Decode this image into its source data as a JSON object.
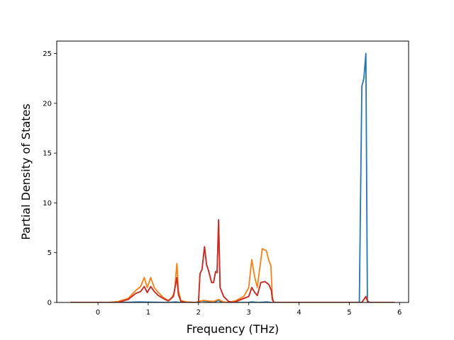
{
  "chart_data": {
    "type": "line",
    "title": "",
    "xlabel": "Frequency (THz)",
    "ylabel": "Partial Density of States",
    "xlim": [
      -0.82,
      6.18
    ],
    "ylim": [
      0,
      26.25
    ],
    "xticks": [
      0,
      1,
      2,
      3,
      4,
      5,
      6
    ],
    "yticks": [
      0,
      5,
      10,
      15,
      20,
      25
    ],
    "xtick_labels": [
      "0",
      "1",
      "2",
      "3",
      "4",
      "5",
      "6"
    ],
    "ytick_labels": [
      "0",
      "5",
      "10",
      "15",
      "20",
      "25"
    ],
    "grid": false,
    "legend": "none",
    "series": [
      {
        "color": "#1f77b4",
        "points": [
          [
            -0.55,
            0
          ],
          [
            0.5,
            0
          ],
          [
            0.8,
            0.05
          ],
          [
            1.0,
            0.03
          ],
          [
            1.4,
            0
          ],
          [
            1.55,
            0.05
          ],
          [
            1.6,
            0.02
          ],
          [
            2.0,
            0
          ],
          [
            2.05,
            0.15
          ],
          [
            2.2,
            0.1
          ],
          [
            2.35,
            0.1
          ],
          [
            2.4,
            0.2
          ],
          [
            2.45,
            0.05
          ],
          [
            2.6,
            0
          ],
          [
            3.0,
            0
          ],
          [
            3.05,
            0.05
          ],
          [
            3.2,
            0
          ],
          [
            3.35,
            0.05
          ],
          [
            3.45,
            0
          ],
          [
            5.2,
            0
          ],
          [
            5.25,
            21.7
          ],
          [
            5.29,
            22.5
          ],
          [
            5.33,
            25.0
          ],
          [
            5.36,
            0.2
          ],
          [
            5.4,
            0
          ],
          [
            5.9,
            0
          ]
        ]
      },
      {
        "color": "#ff7f0e",
        "points": [
          [
            -0.55,
            0
          ],
          [
            0.2,
            0
          ],
          [
            0.4,
            0.1
          ],
          [
            0.6,
            0.4
          ],
          [
            0.75,
            1.2
          ],
          [
            0.85,
            1.6
          ],
          [
            0.92,
            2.5
          ],
          [
            0.98,
            1.5
          ],
          [
            1.05,
            2.5
          ],
          [
            1.12,
            1.5
          ],
          [
            1.2,
            1.0
          ],
          [
            1.3,
            0.5
          ],
          [
            1.4,
            0.2
          ],
          [
            1.47,
            0.5
          ],
          [
            1.52,
            1.0
          ],
          [
            1.57,
            3.9
          ],
          [
            1.6,
            1.2
          ],
          [
            1.65,
            0.2
          ],
          [
            1.75,
            0.05
          ],
          [
            1.95,
            0
          ],
          [
            2.0,
            0.1
          ],
          [
            2.1,
            0.2
          ],
          [
            2.2,
            0.15
          ],
          [
            2.3,
            0.1
          ],
          [
            2.4,
            0.3
          ],
          [
            2.5,
            0.05
          ],
          [
            2.6,
            0
          ],
          [
            2.75,
            0.2
          ],
          [
            2.9,
            0.6
          ],
          [
            3.0,
            1.5
          ],
          [
            3.06,
            4.3
          ],
          [
            3.12,
            2.5
          ],
          [
            3.17,
            1.5
          ],
          [
            3.22,
            3.5
          ],
          [
            3.27,
            5.4
          ],
          [
            3.35,
            5.2
          ],
          [
            3.4,
            4.2
          ],
          [
            3.44,
            3.7
          ],
          [
            3.47,
            0.5
          ],
          [
            3.5,
            0
          ],
          [
            5.25,
            0
          ],
          [
            5.33,
            0.6
          ],
          [
            5.37,
            0
          ],
          [
            5.9,
            0
          ]
        ]
      },
      {
        "color": "#2ca02c",
        "points": [
          [
            -0.55,
            0
          ],
          [
            0.4,
            0
          ],
          [
            0.6,
            0.3
          ],
          [
            0.75,
            0.9
          ],
          [
            0.85,
            1.1
          ],
          [
            0.92,
            1.6
          ],
          [
            0.98,
            1.0
          ],
          [
            1.05,
            1.6
          ],
          [
            1.12,
            1.1
          ],
          [
            1.2,
            0.7
          ],
          [
            1.3,
            0.4
          ],
          [
            1.4,
            0.15
          ],
          [
            1.5,
            0.6
          ],
          [
            1.57,
            2.5
          ],
          [
            1.6,
            0.8
          ],
          [
            1.65,
            0.1
          ],
          [
            1.75,
            0
          ],
          [
            2.0,
            0
          ],
          [
            2.03,
            2.9
          ],
          [
            2.07,
            3.3
          ],
          [
            2.12,
            5.6
          ],
          [
            2.16,
            3.8
          ],
          [
            2.2,
            3.2
          ],
          [
            2.26,
            2.0
          ],
          [
            2.3,
            2.0
          ],
          [
            2.34,
            3.1
          ],
          [
            2.37,
            3.0
          ],
          [
            2.4,
            8.3
          ],
          [
            2.43,
            1.5
          ],
          [
            2.5,
            0.6
          ],
          [
            2.6,
            0.1
          ],
          [
            2.7,
            0
          ],
          [
            2.9,
            0.4
          ],
          [
            3.0,
            0.6
          ],
          [
            3.06,
            1.5
          ],
          [
            3.12,
            1.0
          ],
          [
            3.17,
            0.7
          ],
          [
            3.24,
            2.0
          ],
          [
            3.32,
            2.1
          ],
          [
            3.4,
            1.8
          ],
          [
            3.45,
            1.2
          ],
          [
            3.47,
            0.3
          ],
          [
            3.5,
            0
          ],
          [
            5.25,
            0
          ],
          [
            5.33,
            0.6
          ],
          [
            5.37,
            0
          ],
          [
            5.9,
            0
          ]
        ]
      },
      {
        "color": "#d62728",
        "points": [
          [
            -0.55,
            0
          ],
          [
            0.4,
            0
          ],
          [
            0.6,
            0.3
          ],
          [
            0.75,
            0.9
          ],
          [
            0.85,
            1.1
          ],
          [
            0.92,
            1.6
          ],
          [
            0.98,
            1.0
          ],
          [
            1.05,
            1.6
          ],
          [
            1.12,
            1.1
          ],
          [
            1.2,
            0.7
          ],
          [
            1.3,
            0.4
          ],
          [
            1.4,
            0.15
          ],
          [
            1.5,
            0.6
          ],
          [
            1.57,
            2.5
          ],
          [
            1.6,
            0.8
          ],
          [
            1.65,
            0.1
          ],
          [
            1.75,
            0
          ],
          [
            2.0,
            0
          ],
          [
            2.03,
            2.9
          ],
          [
            2.07,
            3.3
          ],
          [
            2.12,
            5.6
          ],
          [
            2.16,
            3.8
          ],
          [
            2.2,
            3.2
          ],
          [
            2.26,
            2.0
          ],
          [
            2.3,
            2.0
          ],
          [
            2.34,
            3.1
          ],
          [
            2.37,
            3.0
          ],
          [
            2.4,
            8.3
          ],
          [
            2.43,
            1.5
          ],
          [
            2.5,
            0.6
          ],
          [
            2.6,
            0.1
          ],
          [
            2.7,
            0
          ],
          [
            2.9,
            0.4
          ],
          [
            3.0,
            0.6
          ],
          [
            3.06,
            1.5
          ],
          [
            3.12,
            1.0
          ],
          [
            3.17,
            0.7
          ],
          [
            3.24,
            2.0
          ],
          [
            3.32,
            2.1
          ],
          [
            3.4,
            1.8
          ],
          [
            3.45,
            1.2
          ],
          [
            3.47,
            0.3
          ],
          [
            3.5,
            0
          ],
          [
            5.25,
            0
          ],
          [
            5.33,
            0.6
          ],
          [
            5.37,
            0
          ],
          [
            5.9,
            0
          ]
        ]
      }
    ]
  }
}
